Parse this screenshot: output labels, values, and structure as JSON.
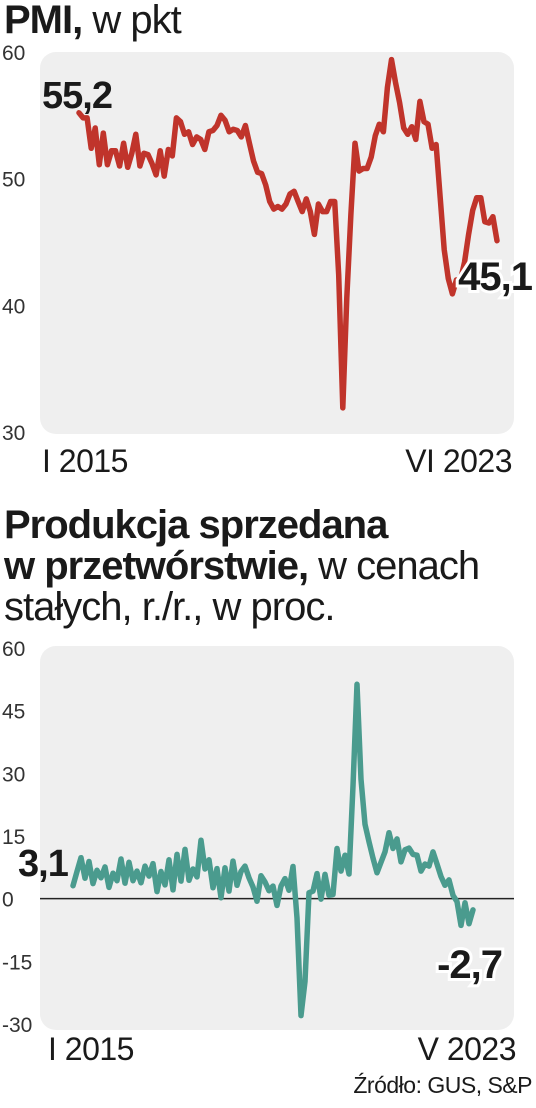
{
  "chart_data": [
    {
      "type": "line",
      "title_bold": "PMI,",
      "title_rest": " w pkt",
      "x_start_label": "I 2015",
      "x_end_label": "VI 2023",
      "yticks": [
        "60",
        "50",
        "40",
        "30"
      ],
      "ylim": [
        30,
        60
      ],
      "first_value_label": "55,2",
      "last_value_label": "45,1",
      "color": "#c0342b",
      "values": [
        55.2,
        54.8,
        54.8,
        52.4,
        54.0,
        51.1,
        53.6,
        51.1,
        52.2,
        52.2,
        51.0,
        52.8,
        50.9,
        52.0,
        53.5,
        51.0,
        52.0,
        51.9,
        51.2,
        50.3,
        52.2,
        50.2,
        52.3,
        51.8,
        54.8,
        54.5,
        53.5,
        53.7,
        52.7,
        53.3,
        53.1,
        52.3,
        53.7,
        53.8,
        54.2,
        55.0,
        54.6,
        53.7,
        53.9,
        53.8,
        53.3,
        54.2,
        52.8,
        51.4,
        50.5,
        50.4,
        49.5,
        48.2,
        47.6,
        47.8,
        47.6,
        48.0,
        48.8,
        49.0,
        48.2,
        47.4,
        48.4,
        47.4,
        45.6,
        48.0,
        47.4,
        47.4,
        48.2,
        48.2,
        42.4,
        31.9,
        40.6,
        47.2,
        52.8,
        50.6,
        50.8,
        50.8,
        51.7,
        53.4,
        54.3,
        53.7,
        57.2,
        59.4,
        57.6,
        56.0,
        54.0,
        53.5,
        54.1,
        53.1,
        56.1,
        54.5,
        54.3,
        52.4,
        52.7,
        48.5,
        44.4,
        42.1,
        40.9,
        42.0,
        42.0,
        43.4,
        45.6,
        47.5,
        48.5,
        48.5,
        46.6,
        46.5,
        47.0,
        45.1
      ]
    },
    {
      "type": "line",
      "title_bold_1": "Produkcja sprzedana",
      "title_bold_2": "w przetwórstwie,",
      "title_rest_2": " w cenach",
      "title_rest_3": "stałych, r./r., w proc.",
      "x_start_label": "I 2015",
      "x_end_label": "V 2023",
      "yticks": [
        "60",
        "45",
        "30",
        "15",
        "0",
        "-15",
        "-30"
      ],
      "ylim": [
        -30,
        60
      ],
      "first_value_label": "3,1",
      "last_value_label": "-2,7",
      "color": "#4a9b8e",
      "values": [
        3.1,
        6.5,
        9.8,
        4.9,
        8.9,
        3.6,
        6.8,
        5.0,
        7.6,
        2.7,
        6.1,
        4.3,
        9.5,
        3.7,
        8.7,
        4.3,
        6.6,
        3.8,
        7.8,
        5.4,
        8.4,
        1.7,
        6.5,
        3.3,
        9.3,
        2.1,
        10.6,
        4.2,
        11.8,
        4.4,
        7.1,
        5.2,
        14.0,
        7.1,
        9.3,
        2.6,
        7.2,
        0.2,
        7.4,
        1.8,
        9.0,
        3.2,
        6.5,
        7.8,
        5.0,
        2.8,
        -0.6,
        5.5,
        4.0,
        1.9,
        3.0,
        -1.6,
        3.0,
        4.8,
        2.0,
        7.7,
        -4.6,
        -28.0,
        -19.8,
        1.4,
        1.8,
        6.0,
        -0.1,
        5.8,
        0.8,
        1.0,
        12.0,
        6.6,
        10.4,
        5.9,
        27.0,
        51.3,
        28.6,
        17.8,
        13.6,
        9.7,
        6.2,
        8.7,
        11.2,
        15.8,
        12.0,
        14.3,
        8.8,
        11.7,
        12.1,
        10.6,
        10.4,
        6.6,
        8.3,
        7.8,
        11.2,
        8.3,
        5.3,
        3.2,
        4.5,
        0.8,
        -0.7,
        -6.4,
        -1.0,
        -6.0,
        -2.7
      ]
    }
  ],
  "source_text": "Źródło: GUS, S&P"
}
